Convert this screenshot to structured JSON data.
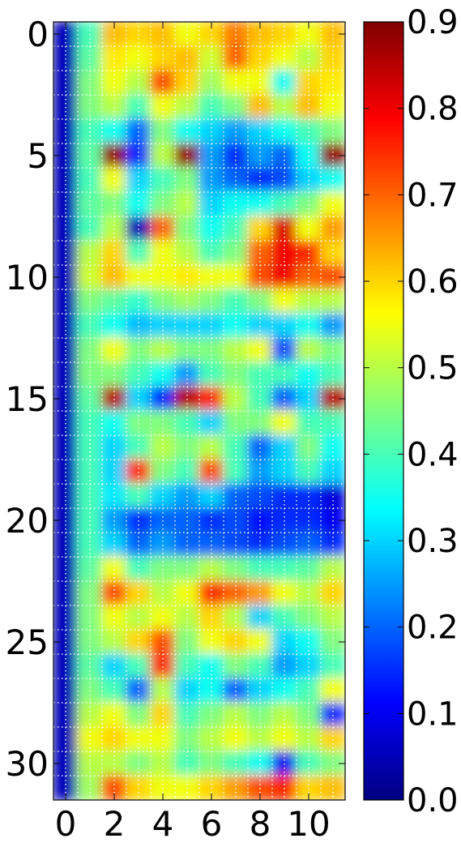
{
  "chart_data": {
    "type": "heatmap",
    "title": "",
    "xlabel": "",
    "ylabel": "",
    "x_ticks": [
      0,
      2,
      4,
      6,
      8,
      10
    ],
    "x_tick_labels": [
      "0",
      "2",
      "4",
      "6",
      "8",
      "10"
    ],
    "y_ticks": [
      0,
      5,
      10,
      15,
      20,
      25,
      30
    ],
    "y_tick_labels": [
      "0",
      "5",
      "10",
      "15",
      "20",
      "25",
      "30"
    ],
    "x_range": [
      -0.5,
      11.5
    ],
    "y_range": [
      -0.5,
      31.5
    ],
    "y_axis_inverted": true,
    "n_cols": 12,
    "n_rows": 32,
    "colormap": "jet",
    "interpolation": "bicubic",
    "grid": true,
    "grid_style": "dotted white",
    "colorbar": {
      "min": 0.0,
      "max": 0.9,
      "ticks": [
        0.0,
        0.1,
        0.2,
        0.3,
        0.4,
        0.5,
        0.6,
        0.7,
        0.8,
        0.9
      ],
      "tick_labels": [
        "0.0",
        "0.1",
        "0.2",
        "0.3",
        "0.4",
        "0.5",
        "0.6",
        "0.7",
        "0.8",
        "0.9"
      ]
    },
    "values": [
      [
        0.05,
        0.4,
        0.62,
        0.6,
        0.62,
        0.55,
        0.6,
        0.68,
        0.62,
        0.6,
        0.55,
        0.62
      ],
      [
        0.05,
        0.42,
        0.58,
        0.55,
        0.6,
        0.62,
        0.52,
        0.7,
        0.6,
        0.55,
        0.5,
        0.6
      ],
      [
        0.05,
        0.45,
        0.55,
        0.5,
        0.72,
        0.6,
        0.48,
        0.55,
        0.55,
        0.35,
        0.6,
        0.58
      ],
      [
        0.05,
        0.45,
        0.5,
        0.4,
        0.55,
        0.5,
        0.4,
        0.45,
        0.62,
        0.5,
        0.62,
        0.55
      ],
      [
        0.05,
        0.4,
        0.35,
        0.2,
        0.45,
        0.35,
        0.3,
        0.25,
        0.3,
        0.35,
        0.4,
        0.45
      ],
      [
        0.05,
        0.42,
        0.88,
        0.15,
        0.5,
        0.88,
        0.25,
        0.15,
        0.25,
        0.2,
        0.35,
        0.88
      ],
      [
        0.05,
        0.4,
        0.55,
        0.3,
        0.4,
        0.45,
        0.25,
        0.2,
        0.15,
        0.18,
        0.3,
        0.35
      ],
      [
        0.05,
        0.42,
        0.45,
        0.35,
        0.45,
        0.5,
        0.3,
        0.35,
        0.35,
        0.4,
        0.45,
        0.55
      ],
      [
        0.05,
        0.4,
        0.5,
        0.05,
        0.7,
        0.45,
        0.35,
        0.4,
        0.6,
        0.82,
        0.55,
        0.65
      ],
      [
        0.05,
        0.5,
        0.6,
        0.4,
        0.55,
        0.5,
        0.4,
        0.45,
        0.7,
        0.8,
        0.75,
        0.6
      ],
      [
        0.05,
        0.52,
        0.62,
        0.55,
        0.55,
        0.58,
        0.55,
        0.55,
        0.72,
        0.8,
        0.7,
        0.72
      ],
      [
        0.05,
        0.45,
        0.42,
        0.38,
        0.45,
        0.48,
        0.45,
        0.4,
        0.45,
        0.55,
        0.5,
        0.5
      ],
      [
        0.05,
        0.4,
        0.35,
        0.28,
        0.3,
        0.3,
        0.3,
        0.35,
        0.3,
        0.3,
        0.35,
        0.25
      ],
      [
        0.05,
        0.45,
        0.55,
        0.45,
        0.5,
        0.45,
        0.45,
        0.5,
        0.55,
        0.18,
        0.5,
        0.45
      ],
      [
        0.05,
        0.45,
        0.45,
        0.4,
        0.35,
        0.25,
        0.4,
        0.45,
        0.4,
        0.4,
        0.35,
        0.4
      ],
      [
        0.05,
        0.42,
        0.85,
        0.3,
        0.15,
        0.85,
        0.75,
        0.5,
        0.4,
        0.2,
        0.3,
        0.85
      ],
      [
        0.05,
        0.4,
        0.35,
        0.45,
        0.45,
        0.4,
        0.3,
        0.45,
        0.45,
        0.55,
        0.4,
        0.4
      ],
      [
        0.05,
        0.4,
        0.3,
        0.4,
        0.5,
        0.45,
        0.5,
        0.4,
        0.2,
        0.3,
        0.45,
        0.35
      ],
      [
        0.05,
        0.4,
        0.3,
        0.75,
        0.45,
        0.4,
        0.72,
        0.4,
        0.25,
        0.3,
        0.4,
        0.3
      ],
      [
        0.05,
        0.4,
        0.32,
        0.4,
        0.3,
        0.25,
        0.3,
        0.2,
        0.18,
        0.15,
        0.15,
        0.08
      ],
      [
        0.05,
        0.4,
        0.25,
        0.15,
        0.2,
        0.2,
        0.15,
        0.18,
        0.12,
        0.15,
        0.15,
        0.1
      ],
      [
        0.05,
        0.4,
        0.3,
        0.2,
        0.25,
        0.2,
        0.2,
        0.18,
        0.15,
        0.18,
        0.2,
        0.15
      ],
      [
        0.05,
        0.42,
        0.55,
        0.4,
        0.45,
        0.45,
        0.5,
        0.45,
        0.4,
        0.4,
        0.42,
        0.5
      ],
      [
        0.05,
        0.45,
        0.72,
        0.6,
        0.5,
        0.55,
        0.75,
        0.7,
        0.65,
        0.55,
        0.5,
        0.6
      ],
      [
        0.05,
        0.45,
        0.55,
        0.5,
        0.55,
        0.5,
        0.6,
        0.5,
        0.3,
        0.4,
        0.45,
        0.5
      ],
      [
        0.05,
        0.45,
        0.5,
        0.6,
        0.72,
        0.45,
        0.55,
        0.6,
        0.55,
        0.3,
        0.35,
        0.45
      ],
      [
        0.05,
        0.42,
        0.3,
        0.4,
        0.75,
        0.4,
        0.35,
        0.45,
        0.4,
        0.25,
        0.3,
        0.4
      ],
      [
        0.05,
        0.45,
        0.4,
        0.2,
        0.5,
        0.3,
        0.35,
        0.2,
        0.3,
        0.35,
        0.4,
        0.55
      ],
      [
        0.05,
        0.5,
        0.55,
        0.45,
        0.6,
        0.4,
        0.45,
        0.5,
        0.45,
        0.5,
        0.45,
        0.15
      ],
      [
        0.05,
        0.55,
        0.6,
        0.55,
        0.55,
        0.45,
        0.5,
        0.55,
        0.5,
        0.55,
        0.5,
        0.6
      ],
      [
        0.05,
        0.5,
        0.5,
        0.45,
        0.5,
        0.4,
        0.45,
        0.4,
        0.35,
        0.1,
        0.4,
        0.45
      ],
      [
        0.05,
        0.48,
        0.72,
        0.6,
        0.55,
        0.55,
        0.6,
        0.65,
        0.72,
        0.75,
        0.6,
        0.62
      ]
    ]
  }
}
